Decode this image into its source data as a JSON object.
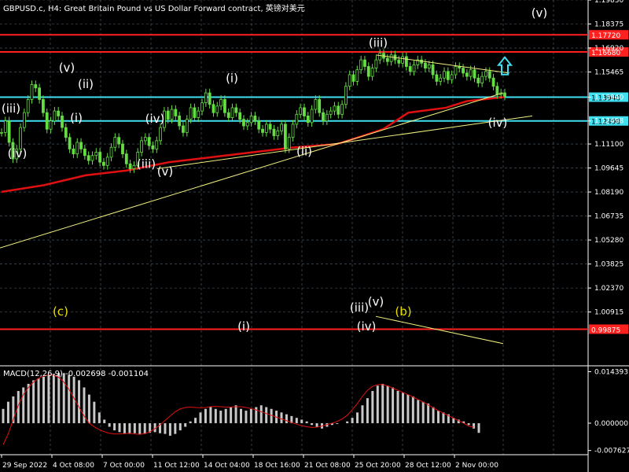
{
  "header": {
    "title": "GBPUSD.c, H4:  Great Britain Pound vs US Dollar Forward contract, 英镑对美元"
  },
  "macd_header": {
    "title": "MACD(12,26,9) -0.002698 -0.001104"
  },
  "colors": {
    "background": "#000000",
    "grid": "#7f8fa0",
    "candle": "#66dd44",
    "ma": "#e01010",
    "support": "#40e0f0",
    "resistance": "#ff2020",
    "trend": "#f0f080",
    "macd_hist": "#c8c8c8",
    "macd_signal": "#e01010",
    "wave_label": "#ffffff",
    "wave_label_yellow": "#e8e000",
    "arrow": "#40e0f0"
  },
  "chart_data": [
    {
      "type": "candlestick",
      "title": "GBPUSD.c, H4:  Great Britain Pound vs US Dollar Forward contract, 英镑对美元",
      "ylim": [
        0.9775,
        1.1983
      ],
      "y_ticks": [
        "1.19830",
        "1.18375",
        "1.16920",
        "1.15465",
        "1.13940",
        "1.12498",
        "1.11100",
        "1.09645",
        "1.08190",
        "1.06735",
        "1.05280",
        "1.03825",
        "1.02370",
        "1.00915"
      ],
      "x_ticks": [
        "29 Sep 2022",
        "4 Oct 08:00",
        "7 Oct 00:00",
        "11 Oct 12:00",
        "14 Oct 04:00",
        "18 Oct 16:00",
        "21 Oct 08:00",
        "25 Oct 20:00",
        "28 Oct 12:00",
        "2 Nov 00:00"
      ],
      "close_series": [
        1.118,
        1.125,
        1.112,
        1.102,
        1.108,
        1.121,
        1.13,
        1.138,
        1.147,
        1.145,
        1.138,
        1.13,
        1.12,
        1.125,
        1.131,
        1.128,
        1.121,
        1.115,
        1.108,
        1.105,
        1.112,
        1.108,
        1.104,
        1.101,
        1.104,
        1.106,
        1.1,
        1.098,
        1.103,
        1.109,
        1.115,
        1.111,
        1.105,
        1.099,
        1.096,
        1.098,
        1.106,
        1.113,
        1.115,
        1.11,
        1.108,
        1.113,
        1.121,
        1.131,
        1.126,
        1.132,
        1.128,
        1.122,
        1.118,
        1.126,
        1.133,
        1.127,
        1.131,
        1.136,
        1.142,
        1.135,
        1.13,
        1.134,
        1.138,
        1.13,
        1.127,
        1.133,
        1.13,
        1.126,
        1.122,
        1.124,
        1.128,
        1.125,
        1.12,
        1.118,
        1.123,
        1.12,
        1.116,
        1.119,
        1.123,
        1.108,
        1.115,
        1.123,
        1.129,
        1.133,
        1.128,
        1.124,
        1.132,
        1.138,
        1.13,
        1.125,
        1.129,
        1.131,
        1.134,
        1.129,
        1.135,
        1.146,
        1.153,
        1.149,
        1.156,
        1.162,
        1.158,
        1.152,
        1.157,
        1.162,
        1.166,
        1.163,
        1.161,
        1.165,
        1.162,
        1.16,
        1.164,
        1.158,
        1.155,
        1.159,
        1.162,
        1.16,
        1.157,
        1.159,
        1.153,
        1.149,
        1.151,
        1.155,
        1.15,
        1.153,
        1.158,
        1.157,
        1.154,
        1.152,
        1.156,
        1.151,
        1.148,
        1.152,
        1.155,
        1.151,
        1.146,
        1.141,
        1.142,
        1.14
      ],
      "moving_average": {
        "name": "",
        "points": [
          [
            0,
            1.082
          ],
          [
            20,
            1.086
          ],
          [
            40,
            1.092
          ],
          [
            60,
            1.095
          ],
          [
            80,
            1.1
          ],
          [
            100,
            1.103
          ],
          [
            120,
            1.106
          ],
          [
            140,
            1.109
          ],
          [
            160,
            1.111
          ],
          [
            170,
            1.115
          ],
          [
            182,
            1.12
          ],
          [
            194,
            1.13
          ],
          [
            212,
            1.133
          ],
          [
            222,
            1.137
          ],
          [
            240,
            1.1395
          ]
        ],
        "x_scale": 240
      },
      "horizontal_lines": [
        {
          "price": 1.1772,
          "label": "1.17720",
          "kind": "resistance"
        },
        {
          "price": 1.1668,
          "label": "1.16680",
          "kind": "resistance"
        },
        {
          "price": 1.1394,
          "label": "1.13940",
          "kind": "support"
        },
        {
          "price": 1.12498,
          "label": "1.12498",
          "kind": "support"
        },
        {
          "price": 0.99875,
          "label": "0.99875",
          "kind": "resistance"
        }
      ],
      "trend_lines": [
        {
          "from": [
            0,
            1.048
          ],
          "to": [
            640,
            1.142
          ]
        },
        {
          "from": [
            200,
            1.096
          ],
          "to": [
            677,
            1.128
          ]
        },
        {
          "from": [
            478,
            1.165
          ],
          "to": [
            648,
            1.154
          ]
        },
        {
          "from": [
            478,
            1.0065
          ],
          "to": [
            640,
            0.99
          ]
        }
      ],
      "wave_labels": [
        {
          "text": "(iii)",
          "x": 14,
          "price": 1.13,
          "color": "white"
        },
        {
          "text": "(iv)",
          "x": 22,
          "price": 1.103,
          "color": "white"
        },
        {
          "text": "(v)",
          "x": 85,
          "price": 1.155,
          "color": "white"
        },
        {
          "text": "(ii)",
          "x": 109,
          "price": 1.145,
          "color": "white"
        },
        {
          "text": "(i)",
          "x": 97,
          "price": 1.1245,
          "color": "white"
        },
        {
          "text": "(iv)",
          "x": 197,
          "price": 1.124,
          "color": "white"
        },
        {
          "text": "(iii)",
          "x": 186,
          "price": 1.0965,
          "color": "white"
        },
        {
          "text": "(v)",
          "x": 210,
          "price": 1.092,
          "color": "white"
        },
        {
          "text": "(i)",
          "x": 295,
          "price": 1.1485,
          "color": "white"
        },
        {
          "text": "(ii)",
          "x": 387,
          "price": 1.104,
          "color": "white"
        },
        {
          "text": "(iii)",
          "x": 481,
          "price": 1.17,
          "color": "white"
        },
        {
          "text": "(iv)",
          "x": 633,
          "price": 1.1215,
          "color": "white"
        },
        {
          "text": "(v)",
          "x": 686,
          "price": 1.188,
          "color": "white"
        },
        {
          "text": "(c)",
          "x": 77,
          "price": 1.007,
          "color": "yellow"
        },
        {
          "text": "(b)",
          "x": 513,
          "price": 1.007,
          "color": "yellow"
        },
        {
          "text": "(iii)",
          "x": 457,
          "price": 1.0095,
          "color": "white"
        },
        {
          "text": "(v)",
          "x": 478,
          "price": 1.013,
          "color": "white"
        },
        {
          "text": "(iv)",
          "x": 466,
          "price": 0.998,
          "color": "white"
        },
        {
          "text": "(i)",
          "x": 310,
          "price": 0.998,
          "color": "white"
        }
      ],
      "arrow": {
        "x": 642,
        "price": 1.155,
        "direction": "up"
      }
    },
    {
      "type": "bar",
      "title": "MACD(12,26,9) -0.002698 -0.001104",
      "ylim": [
        -0.0088,
        0.0156
      ],
      "y_ticks": [
        "0.014393",
        "0.000000",
        "-0.007627"
      ],
      "histogram": [
        0.004,
        0.006,
        0.0075,
        0.009,
        0.01,
        0.011,
        0.012,
        0.0125,
        0.013,
        0.0135,
        0.0138,
        0.014,
        0.014,
        0.0135,
        0.013,
        0.012,
        0.01,
        0.008,
        0.006,
        0.003,
        0.001,
        -0.001,
        -0.002,
        -0.0025,
        -0.003,
        -0.003,
        -0.0028,
        -0.0032,
        -0.003,
        -0.0027,
        -0.0025,
        -0.0028,
        -0.003,
        -0.0035,
        -0.003,
        -0.002,
        -0.001,
        0.0005,
        0.0015,
        0.003,
        0.004,
        0.0045,
        0.004,
        0.0035,
        0.004,
        0.0045,
        0.005,
        0.004,
        0.0035,
        0.004,
        0.0045,
        0.005,
        0.0045,
        0.004,
        0.0035,
        0.003,
        0.0025,
        0.002,
        0.0015,
        0.001,
        0.0005,
        -0.0005,
        -0.001,
        -0.0015,
        -0.001,
        -0.0005,
        -0.0002,
        0.0,
        0.0005,
        0.0015,
        0.003,
        0.005,
        0.007,
        0.009,
        0.0105,
        0.011,
        0.0105,
        0.01,
        0.009,
        0.0085,
        0.008,
        0.0075,
        0.0065,
        0.006,
        0.0055,
        0.0045,
        0.0035,
        0.003,
        0.0025,
        0.0015,
        0.001,
        0.0005,
        -0.0005,
        -0.0015,
        -0.0027
      ],
      "signal": [
        -0.006,
        -0.003,
        0.001,
        0.005,
        0.008,
        0.01,
        0.0115,
        0.0125,
        0.0132,
        0.0135,
        0.0134,
        0.0128,
        0.0115,
        0.0095,
        0.007,
        0.0045,
        0.002,
        0.0,
        -0.001,
        -0.0018,
        -0.0024,
        -0.0028,
        -0.003,
        -0.003,
        -0.0029,
        -0.0028,
        -0.003,
        -0.0031,
        -0.0029,
        -0.0024,
        -0.0015,
        -0.0005,
        0.0008,
        0.002,
        0.0032,
        0.004,
        0.0044,
        0.0045,
        0.0044,
        0.0043,
        0.0044,
        0.0046,
        0.0047,
        0.0046,
        0.0045,
        0.0045,
        0.0046,
        0.0046,
        0.0044,
        0.0041,
        0.0037,
        0.0032,
        0.0027,
        0.0022,
        0.0017,
        0.0012,
        0.0007,
        0.0002,
        -0.0003,
        -0.0007,
        -0.001,
        -0.0012,
        -0.0011,
        -0.0008,
        -0.0004,
        0.0,
        0.0005,
        0.0012,
        0.0022,
        0.0038,
        0.0055,
        0.0075,
        0.0092,
        0.0103,
        0.0108,
        0.0108,
        0.0104,
        0.0098,
        0.0092,
        0.0086,
        0.008,
        0.0073,
        0.0066,
        0.0059,
        0.0051,
        0.0043,
        0.0035,
        0.0028,
        0.0021,
        0.0014,
        0.0007,
        0.0,
        -0.0008,
        -0.0011
      ]
    }
  ]
}
